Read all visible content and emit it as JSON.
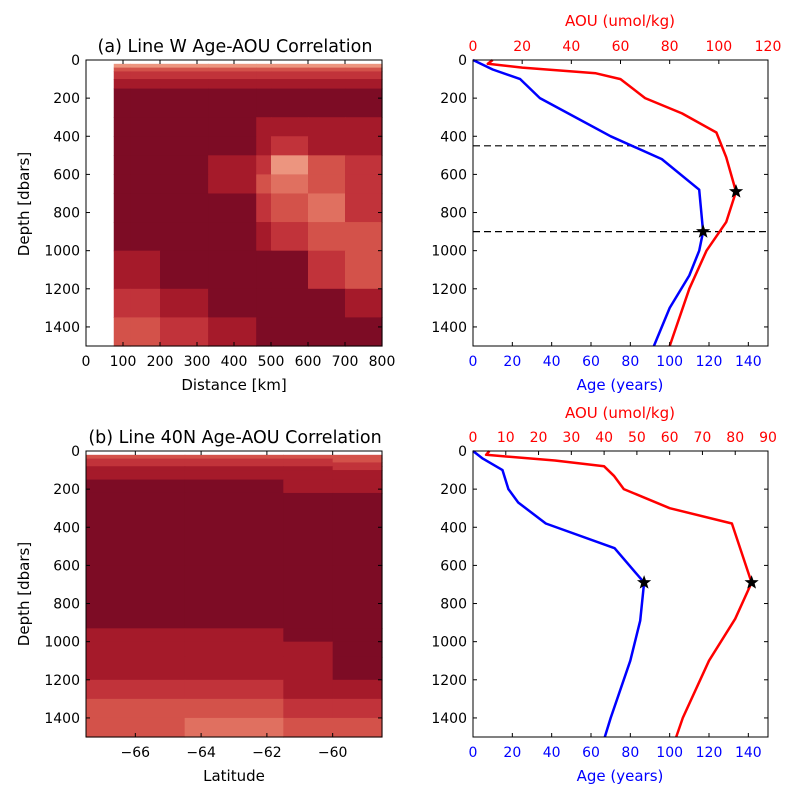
{
  "colors": {
    "age": "#0000ff",
    "aou": "#ff0000",
    "marker": "#000000",
    "contour_levels": [
      "#7d0c25",
      "#a51a2a",
      "#c1333a",
      "#d3524a",
      "#e07060",
      "#ec957f",
      "#f6bfae"
    ]
  },
  "chart_data": [
    {
      "id": "a-section",
      "type": "heatmap",
      "title": "(a) Line W Age-AOU Correlation",
      "xlabel": "Distance [km]",
      "ylabel": "Depth [dbars]",
      "xlim": [
        0,
        800
      ],
      "ylim": [
        1500,
        0
      ],
      "xticks": [
        0,
        100,
        200,
        300,
        400,
        500,
        600,
        700,
        800
      ],
      "yticks": [
        0,
        200,
        400,
        600,
        800,
        1000,
        1200,
        1400
      ],
      "x": [
        75,
        120,
        200,
        330,
        460,
        500,
        600,
        700,
        800
      ],
      "y": [
        0,
        20,
        40,
        60,
        100,
        150,
        300,
        400,
        500,
        600,
        700,
        850,
        1000,
        1200,
        1350,
        1500
      ],
      "levels": [
        [
          null,
          null,
          null,
          null,
          null,
          null,
          null,
          null,
          null
        ],
        [
          5,
          5,
          5,
          5,
          5,
          5,
          5,
          5,
          5
        ],
        [
          3,
          3,
          3,
          3,
          3,
          3,
          3,
          3,
          3
        ],
        [
          2,
          2,
          2,
          2,
          2,
          2,
          2,
          2,
          2
        ],
        [
          1,
          1,
          1,
          1,
          1,
          1,
          1,
          1,
          1
        ],
        [
          0,
          0,
          0,
          0,
          0,
          0,
          0,
          0,
          1
        ],
        [
          0,
          0,
          0,
          0,
          1,
          1,
          1,
          1,
          1
        ],
        [
          0,
          0,
          0,
          0,
          1,
          2,
          1,
          1,
          1
        ],
        [
          0,
          0,
          0,
          1,
          2,
          5,
          3,
          2,
          1
        ],
        [
          0,
          0,
          0,
          1,
          3,
          4,
          3,
          2,
          1
        ],
        [
          0,
          0,
          0,
          0,
          2,
          3,
          4,
          2,
          2
        ],
        [
          0,
          0,
          0,
          0,
          1,
          2,
          3,
          3,
          4
        ],
        [
          1,
          1,
          0,
          0,
          0,
          0,
          2,
          3,
          3
        ],
        [
          2,
          2,
          1,
          0,
          0,
          0,
          0,
          1,
          2
        ],
        [
          3,
          3,
          2,
          1,
          0,
          0,
          0,
          0,
          1
        ],
        [
          3,
          3,
          3,
          2,
          1,
          0,
          0,
          0,
          0
        ]
      ]
    },
    {
      "id": "a-profiles",
      "type": "line",
      "xlabel": "Age (years)",
      "x2label": "AOU (umol/kg)",
      "xlim": [
        0,
        150
      ],
      "x2lim": [
        0,
        120
      ],
      "ylim": [
        1500,
        0
      ],
      "xticks": [
        0,
        20,
        40,
        60,
        80,
        100,
        120,
        140
      ],
      "x2ticks": [
        0,
        20,
        40,
        60,
        80,
        100,
        120
      ],
      "yticks": [
        0,
        200,
        400,
        600,
        800,
        1000,
        1200,
        1400
      ],
      "hlines": [
        450,
        900
      ],
      "series": [
        {
          "key": "age",
          "axis": "bottom",
          "x": [
            0,
            10,
            24,
            34,
            70,
            96,
            115,
            117,
            115,
            110,
            100,
            92
          ],
          "y": [
            0,
            50,
            100,
            200,
            400,
            520,
            680,
            900,
            1000,
            1130,
            1300,
            1500
          ],
          "marker": {
            "x": 117,
            "y": 900
          }
        },
        {
          "key": "aou",
          "axis": "top",
          "x": [
            8,
            6,
            20,
            50,
            60,
            70,
            85,
            99,
            103,
            107,
            103,
            95,
            88,
            80
          ],
          "y": [
            0,
            20,
            40,
            70,
            100,
            200,
            280,
            380,
            510,
            690,
            850,
            1000,
            1200,
            1500
          ],
          "marker": {
            "x": 107,
            "y": 690
          }
        }
      ]
    },
    {
      "id": "b-section",
      "type": "heatmap",
      "title": "(b) Line 40N Age-AOU Correlation",
      "xlabel": "Latitude",
      "ylabel": "Depth [dbars]",
      "xlim": [
        -67.5,
        -58.5
      ],
      "ylim": [
        1500,
        0
      ],
      "xticks": [
        -66,
        -64,
        -62,
        -60
      ],
      "yticks": [
        0,
        200,
        400,
        600,
        800,
        1000,
        1200,
        1400
      ],
      "x": [
        -67.5,
        -64.5,
        -61.5,
        -60,
        -58.5
      ],
      "y": [
        0,
        20,
        40,
        60,
        80,
        100,
        150,
        220,
        600,
        930,
        1000,
        1080,
        1200,
        1300,
        1400,
        1500
      ],
      "levels": [
        [
          null,
          null,
          null,
          null,
          null
        ],
        [
          3,
          3,
          3,
          3,
          3
        ],
        [
          2,
          2,
          2,
          3,
          3
        ],
        [
          2,
          2,
          2,
          2,
          2
        ],
        [
          1,
          1,
          1,
          2,
          2
        ],
        [
          1,
          1,
          1,
          1,
          1
        ],
        [
          0,
          0,
          1,
          1,
          1
        ],
        [
          0,
          0,
          0,
          0,
          1
        ],
        [
          0,
          0,
          0,
          0,
          0
        ],
        [
          1,
          1,
          0,
          0,
          0
        ],
        [
          1,
          1,
          1,
          0,
          0
        ],
        [
          1,
          1,
          1,
          0,
          0
        ],
        [
          2,
          2,
          1,
          1,
          1
        ],
        [
          3,
          3,
          2,
          2,
          2
        ],
        [
          3,
          4,
          3,
          3,
          3
        ],
        [
          4,
          4,
          4,
          3,
          3
        ]
      ]
    },
    {
      "id": "b-profiles",
      "type": "line",
      "xlabel": "Age (years)",
      "x2label": "AOU (umol/kg)",
      "xlim": [
        0,
        150
      ],
      "x2lim": [
        0,
        90
      ],
      "ylim": [
        1500,
        0
      ],
      "xticks": [
        0,
        20,
        40,
        60,
        80,
        100,
        120,
        140
      ],
      "x2ticks": [
        0,
        10,
        20,
        30,
        40,
        50,
        60,
        70,
        80,
        90
      ],
      "yticks": [
        0,
        200,
        400,
        600,
        800,
        1000,
        1200,
        1400
      ],
      "hlines": [],
      "series": [
        {
          "key": "age",
          "axis": "bottom",
          "x": [
            0,
            5,
            15,
            18,
            23,
            37,
            72,
            87,
            85,
            80,
            70,
            67
          ],
          "y": [
            0,
            40,
            100,
            200,
            270,
            380,
            510,
            690,
            890,
            1100,
            1400,
            1500
          ],
          "marker": {
            "x": 87,
            "y": 690
          }
        },
        {
          "key": "aou",
          "axis": "top",
          "x": [
            5,
            4,
            25,
            40,
            43,
            46,
            60,
            79,
            85,
            80,
            72,
            64,
            62
          ],
          "y": [
            0,
            20,
            50,
            80,
            130,
            200,
            300,
            380,
            690,
            880,
            1100,
            1400,
            1500
          ],
          "marker": {
            "x": 85,
            "y": 690
          }
        }
      ]
    }
  ]
}
